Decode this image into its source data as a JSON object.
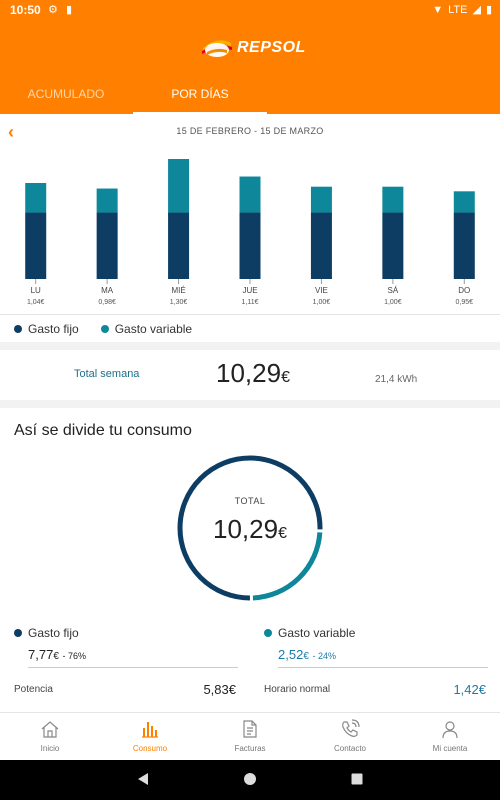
{
  "status_bar": {
    "time": "10:50",
    "network": "LTE"
  },
  "header": {
    "brand": "REPSOL",
    "tabs": [
      {
        "label": "ACUMULADO"
      },
      {
        "label": "POR DÍAS"
      }
    ],
    "active_tab": 1
  },
  "chart": {
    "date_range": "15 DE FEBRERO - 15 DE MARZO"
  },
  "chart_data": {
    "type": "bar",
    "stacked": true,
    "categories": [
      "LU",
      "MA",
      "MIÉ",
      "JUE",
      "VIE",
      "SÁ",
      "DO"
    ],
    "category_totals": [
      "1,04€",
      "0,98€",
      "1,30€",
      "1,11€",
      "1,00€",
      "1,00€",
      "0,95€"
    ],
    "series": [
      {
        "name": "Gasto fijo",
        "color": "#0d3d63",
        "values": [
          0.72,
          0.72,
          0.72,
          0.72,
          0.72,
          0.72,
          0.72
        ]
      },
      {
        "name": "Gasto variable",
        "color": "#0e879a",
        "values": [
          0.32,
          0.26,
          0.58,
          0.39,
          0.28,
          0.28,
          0.23
        ]
      }
    ],
    "ylim": [
      0,
      1.3
    ],
    "legend": "bottom-left"
  },
  "summary": {
    "label": "Total semana",
    "value": "10,29",
    "currency": "€",
    "energy": "21,4 kWh"
  },
  "breakdown": {
    "title": "Así se divide tu consumo",
    "center_label": "TOTAL",
    "center_value": "10,29",
    "currency": "€",
    "donut": {
      "fixed_fraction": 0.76,
      "variable_fraction": 0.24,
      "fixed_color": "#0d3d63",
      "variable_color": "#0e879a"
    },
    "fixed": {
      "label": "Gasto fijo",
      "amount": "7,77",
      "currency": "€",
      "percent": "- 76%",
      "sub_label": "Potencia",
      "sub_value": "5,83€"
    },
    "variable": {
      "label": "Gasto variable",
      "amount": "2,52",
      "currency": "€",
      "percent": "- 24%",
      "sub_label": "Horario normal",
      "sub_value": "1,42€"
    }
  },
  "bottom_nav": [
    {
      "label": "Inicio",
      "icon": "home-icon"
    },
    {
      "label": "Consumo",
      "icon": "bar-chart-icon"
    },
    {
      "label": "Facturas",
      "icon": "document-icon"
    },
    {
      "label": "Contacto",
      "icon": "phone-icon"
    },
    {
      "label": "Mi cuenta",
      "icon": "user-icon"
    }
  ],
  "active_nav": 1
}
